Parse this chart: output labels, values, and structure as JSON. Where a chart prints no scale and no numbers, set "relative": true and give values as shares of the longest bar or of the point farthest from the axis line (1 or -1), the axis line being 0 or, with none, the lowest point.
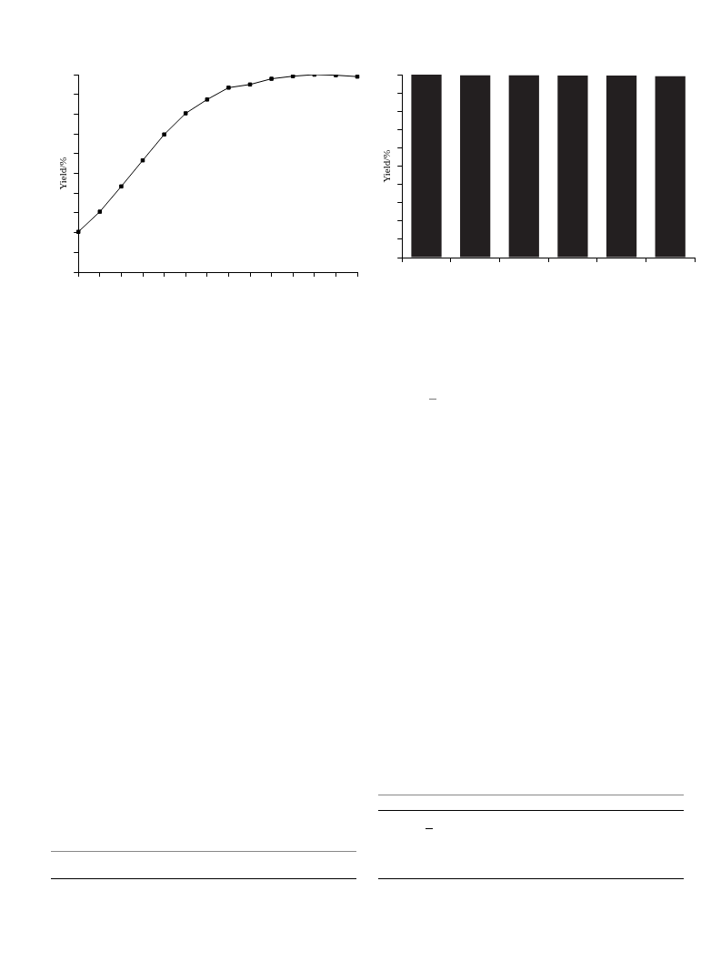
{
  "chart_data": [
    {
      "type": "line",
      "ylabel": "Yield/%",
      "relative": true,
      "marker": "square",
      "categories": [
        null,
        null,
        null,
        null,
        null,
        null,
        null,
        null,
        null,
        null,
        null,
        null,
        null,
        null
      ],
      "series": [
        {
          "color": "#000000",
          "values": [
            0.204,
            0.306,
            0.434,
            0.566,
            0.697,
            0.804,
            0.874,
            0.934,
            0.95,
            0.979,
            0.992,
            1,
            0.997,
            0.99
          ]
        }
      ]
    },
    {
      "type": "bar",
      "ylabel": "Yield/%",
      "relative": true,
      "categories": [
        null,
        null,
        null,
        null,
        null,
        null
      ],
      "series": [
        {
          "color": "#231f20",
          "values": [
            1,
            0.996,
            0.996,
            0.995,
            0.995,
            0.991
          ]
        }
      ]
    }
  ]
}
